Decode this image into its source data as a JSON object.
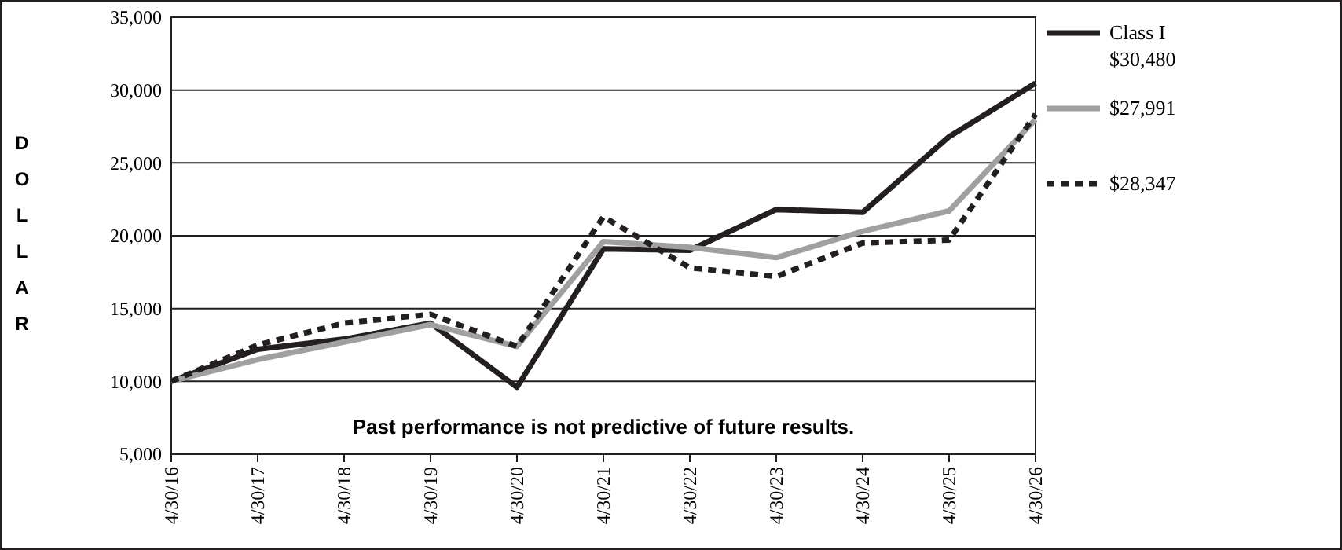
{
  "chart_data": {
    "type": "line",
    "ylabel": "DOLLAR",
    "categories": [
      "4/30/16",
      "4/30/17",
      "4/30/18",
      "4/30/19",
      "4/30/20",
      "4/30/21",
      "4/30/22",
      "4/30/23",
      "4/30/24",
      "4/30/25",
      "4/30/26"
    ],
    "series": [
      {
        "name": "Class I\n$30,480",
        "color": "#231f20",
        "line_style": "solid",
        "values": [
          10000,
          12200,
          12900,
          14000,
          9600,
          19100,
          19000,
          21800,
          21600,
          26800,
          30480
        ]
      },
      {
        "name": "$27,991",
        "color": "#a0a0a0",
        "line_style": "solid",
        "values": [
          10000,
          11500,
          12700,
          13900,
          12400,
          19600,
          19200,
          18500,
          20300,
          21700,
          27991
        ]
      },
      {
        "name": "$28,347",
        "color": "#231f20",
        "line_style": "dashed",
        "values": [
          10000,
          12500,
          14000,
          14600,
          12400,
          21300,
          17800,
          17200,
          19500,
          19700,
          28347
        ]
      }
    ],
    "ylim": [
      5000,
      35000
    ],
    "yticks": [
      {
        "value": 5000,
        "label": "5,000"
      },
      {
        "value": 10000,
        "label": "10,000"
      },
      {
        "value": 15000,
        "label": "15,000"
      },
      {
        "value": 20000,
        "label": "20,000"
      },
      {
        "value": 25000,
        "label": "25,000"
      },
      {
        "value": 30000,
        "label": "30,000"
      },
      {
        "value": 35000,
        "label": "35,000"
      }
    ],
    "grid": "y",
    "legend": "right",
    "annotations": [
      "Past performance is not predictive of future results."
    ]
  }
}
